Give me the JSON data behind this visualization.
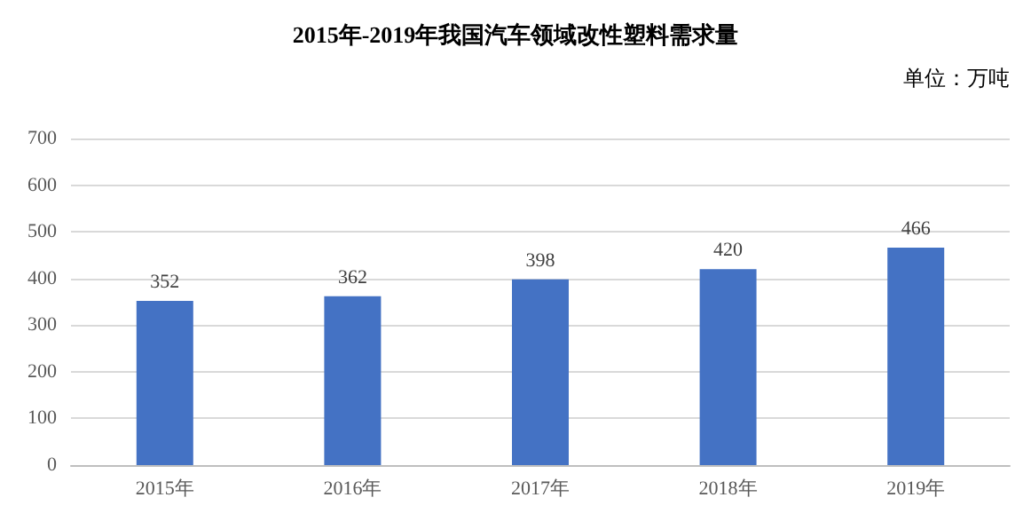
{
  "chart_data": {
    "type": "bar",
    "title": "2015年-2019年我国汽车领域改性塑料需求量",
    "annotations": [
      "单位：万吨"
    ],
    "categories": [
      "2015年",
      "2016年",
      "2017年",
      "2018年",
      "2019年"
    ],
    "values": [
      352,
      362,
      398,
      420,
      466
    ],
    "color": "#4472c4",
    "ylim": [
      0,
      700
    ],
    "yticks": [
      0,
      100,
      200,
      300,
      400,
      500,
      600,
      700
    ],
    "grid": "y",
    "data_labels": true
  }
}
